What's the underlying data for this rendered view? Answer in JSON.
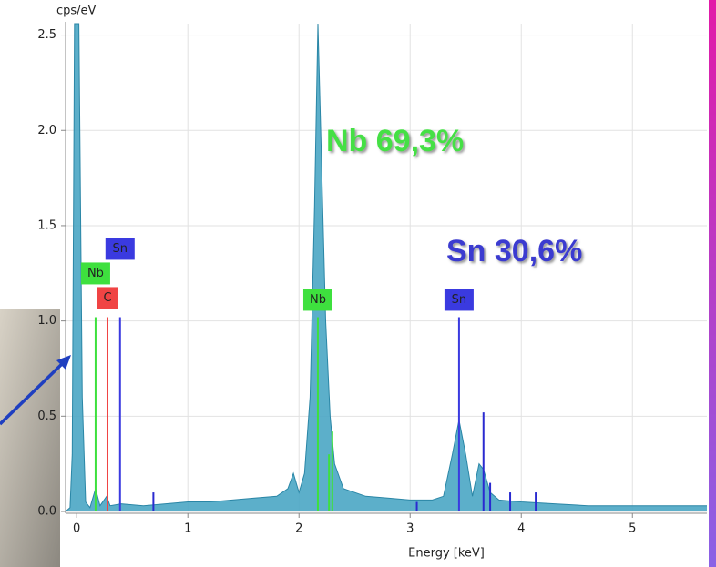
{
  "chart_data": {
    "type": "area",
    "y_label": "cps/eV",
    "x_label": "Energy [keV]",
    "annotations": [
      "Nb 69,3%",
      "Sn 30,6%"
    ],
    "annotation_colors": [
      "#44e044",
      "#3a3ad0"
    ],
    "xlim": [
      -0.1,
      5.67
    ],
    "ylim": [
      0,
      2.56
    ],
    "xticks": [
      0,
      1,
      2,
      3,
      4,
      5
    ],
    "yticks": [
      {
        "value": 0,
        "label": "0.0"
      },
      0.5,
      {
        "value": 1,
        "label": "1.0"
      },
      1.5,
      {
        "value": 2,
        "label": "2.0"
      },
      2.5
    ],
    "grid": true,
    "color": "#4aa6c4",
    "x": [
      -0.1,
      -0.06,
      -0.04,
      -0.02,
      0.02,
      0.05,
      0.08,
      0.12,
      0.17,
      0.21,
      0.27,
      0.3,
      0.4,
      0.6,
      0.8,
      1.0,
      1.2,
      1.4,
      1.6,
      1.8,
      1.9,
      1.95,
      2.0,
      2.05,
      2.1,
      2.14,
      2.17,
      2.2,
      2.24,
      2.28,
      2.32,
      2.4,
      2.6,
      2.8,
      3.0,
      3.2,
      3.3,
      3.38,
      3.44,
      3.5,
      3.56,
      3.62,
      3.66,
      3.72,
      3.8,
      4.0,
      4.3,
      4.6,
      5.0,
      5.4,
      5.67
    ],
    "values": [
      0,
      0.02,
      0.3,
      2.56,
      2.56,
      0.6,
      0.05,
      0.02,
      0.12,
      0.03,
      0.08,
      0.03,
      0.04,
      0.03,
      0.04,
      0.05,
      0.05,
      0.06,
      0.07,
      0.08,
      0.12,
      0.2,
      0.1,
      0.2,
      0.6,
      1.6,
      2.56,
      1.9,
      1.0,
      0.5,
      0.25,
      0.12,
      0.08,
      0.07,
      0.06,
      0.06,
      0.08,
      0.3,
      0.48,
      0.3,
      0.08,
      0.25,
      0.22,
      0.1,
      0.06,
      0.05,
      0.04,
      0.03,
      0.03,
      0.03,
      0.03
    ],
    "markers": [
      {
        "label": "Nb",
        "x": 0.17,
        "height": 1.02,
        "color": "#3ee03e"
      },
      {
        "label": "C",
        "x": 0.277,
        "height": 1.02,
        "color": "#f04444"
      },
      {
        "label": "Sn",
        "x": 0.39,
        "height": 1.02,
        "color": "#3a3ae0"
      },
      {
        "label": "Nb",
        "x": 2.17,
        "height": 1.02,
        "color": "#3ee03e"
      },
      {
        "label": "Sn",
        "x": 3.44,
        "height": 1.02,
        "color": "#3a3ae0"
      }
    ],
    "minor_lines": [
      {
        "x": 0.69,
        "height": 0.1,
        "color": "#2a2ad0"
      },
      {
        "x": 2.27,
        "height": 0.3,
        "color": "#3ee03e"
      },
      {
        "x": 2.3,
        "height": 0.42,
        "color": "#3ee03e"
      },
      {
        "x": 3.06,
        "height": 0.05,
        "color": "#2a2ad0"
      },
      {
        "x": 3.66,
        "height": 0.52,
        "color": "#2a2ad0"
      },
      {
        "x": 3.72,
        "height": 0.15,
        "color": "#2a2ad0"
      },
      {
        "x": 3.9,
        "height": 0.1,
        "color": "#2a2ad0"
      },
      {
        "x": 4.13,
        "height": 0.1,
        "color": "#2a2ad0"
      }
    ]
  }
}
